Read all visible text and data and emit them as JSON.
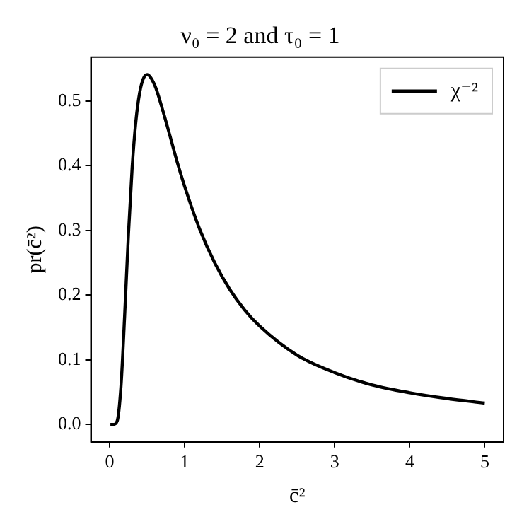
{
  "chart_data": {
    "type": "line",
    "title": "ν₀ = 2 and τ₀ = 1",
    "xlabel": "c̄²",
    "ylabel": "pr(c̄²)",
    "x": [
      0.01,
      0.05,
      0.1,
      0.15,
      0.2,
      0.25,
      0.3,
      0.35,
      0.4,
      0.45,
      0.5,
      0.6,
      0.7,
      0.8,
      0.9,
      1.0,
      1.2,
      1.4,
      1.6,
      1.8,
      2.0,
      2.5,
      3.0,
      3.5,
      4.0,
      4.5,
      5.0
    ],
    "series": [
      {
        "name": "χ⁻²",
        "color": "#000000",
        "values": [
          0,
          0,
          0.005,
          0.057,
          0.168,
          0.293,
          0.397,
          0.469,
          0.513,
          0.535,
          0.541,
          0.525,
          0.489,
          0.448,
          0.406,
          0.368,
          0.302,
          0.25,
          0.209,
          0.177,
          0.152,
          0.107,
          0.08,
          0.061,
          0.049,
          0.04,
          0.033
        ]
      }
    ],
    "xlim": [
      -0.25,
      5.25
    ],
    "ylim": [
      -0.027,
      0.568
    ],
    "xticks": [
      0,
      1,
      2,
      3,
      4,
      5
    ],
    "yticks": [
      {
        "value": 0,
        "label": "0.0"
      },
      {
        "value": 0.1,
        "label": "0.1"
      },
      {
        "value": 0.2,
        "label": "0.2"
      },
      {
        "value": 0.3,
        "label": "0.3"
      },
      {
        "value": 0.4,
        "label": "0.4"
      },
      {
        "value": 0.5,
        "label": "0.5"
      }
    ],
    "grid": false,
    "legend": "top right",
    "marker": "none",
    "line_style": "solid"
  }
}
